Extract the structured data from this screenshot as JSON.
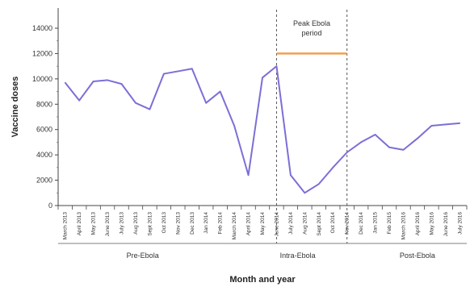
{
  "chart_data": {
    "type": "line",
    "title": "",
    "xlabel": "Month and year",
    "ylabel": "Vaccine doses",
    "ylim": [
      0,
      14000
    ],
    "yticks": [
      0,
      2000,
      4000,
      6000,
      8000,
      10000,
      12000,
      14000
    ],
    "categories": [
      "March 2013",
      "April 2013",
      "May 2013",
      "June 2013",
      "July 2013",
      "Aug 2013",
      "Sept 2013",
      "Oct 2013",
      "Nov 2013",
      "Dec 2013",
      "Jan 2014",
      "Feb 2014",
      "March 2014",
      "April 2014",
      "May 2014",
      "June 2014",
      "July 2014",
      "Aug 2014",
      "Sept 2014",
      "Oct 2014",
      "Nov 2014",
      "Dec 2014",
      "Jan 2015",
      "Feb 2015",
      "March 2016",
      "April 2016",
      "May 2016",
      "June 2016",
      "July 2016"
    ],
    "series": [
      {
        "name": "",
        "color": "#7b6fd6",
        "values": [
          9700,
          8300,
          9800,
          9900,
          9600,
          8100,
          7600,
          10400,
          10600,
          10800,
          8100,
          9000,
          6300,
          2400,
          10100,
          11000,
          2400,
          1000,
          1700,
          3000,
          4200,
          5000,
          5600,
          4600,
          4400,
          5300,
          6300,
          6400,
          6500
        ]
      }
    ],
    "annotation": {
      "text_lines": [
        "Peak Ebola",
        "period"
      ],
      "line_value": 12000,
      "line_color": "#f0a050",
      "start_index": 15,
      "end_index": 20
    },
    "phase_dividers": [
      15,
      20
    ],
    "phases": [
      {
        "label": "Pre-Ebola",
        "start_index": 0,
        "end_index": 11
      },
      {
        "label": "Intra-Ebola",
        "start_index": 12,
        "end_index": 21
      },
      {
        "label": "Post-Ebola",
        "start_index": 22,
        "end_index": 28
      }
    ],
    "grid": false,
    "legend": "none"
  }
}
